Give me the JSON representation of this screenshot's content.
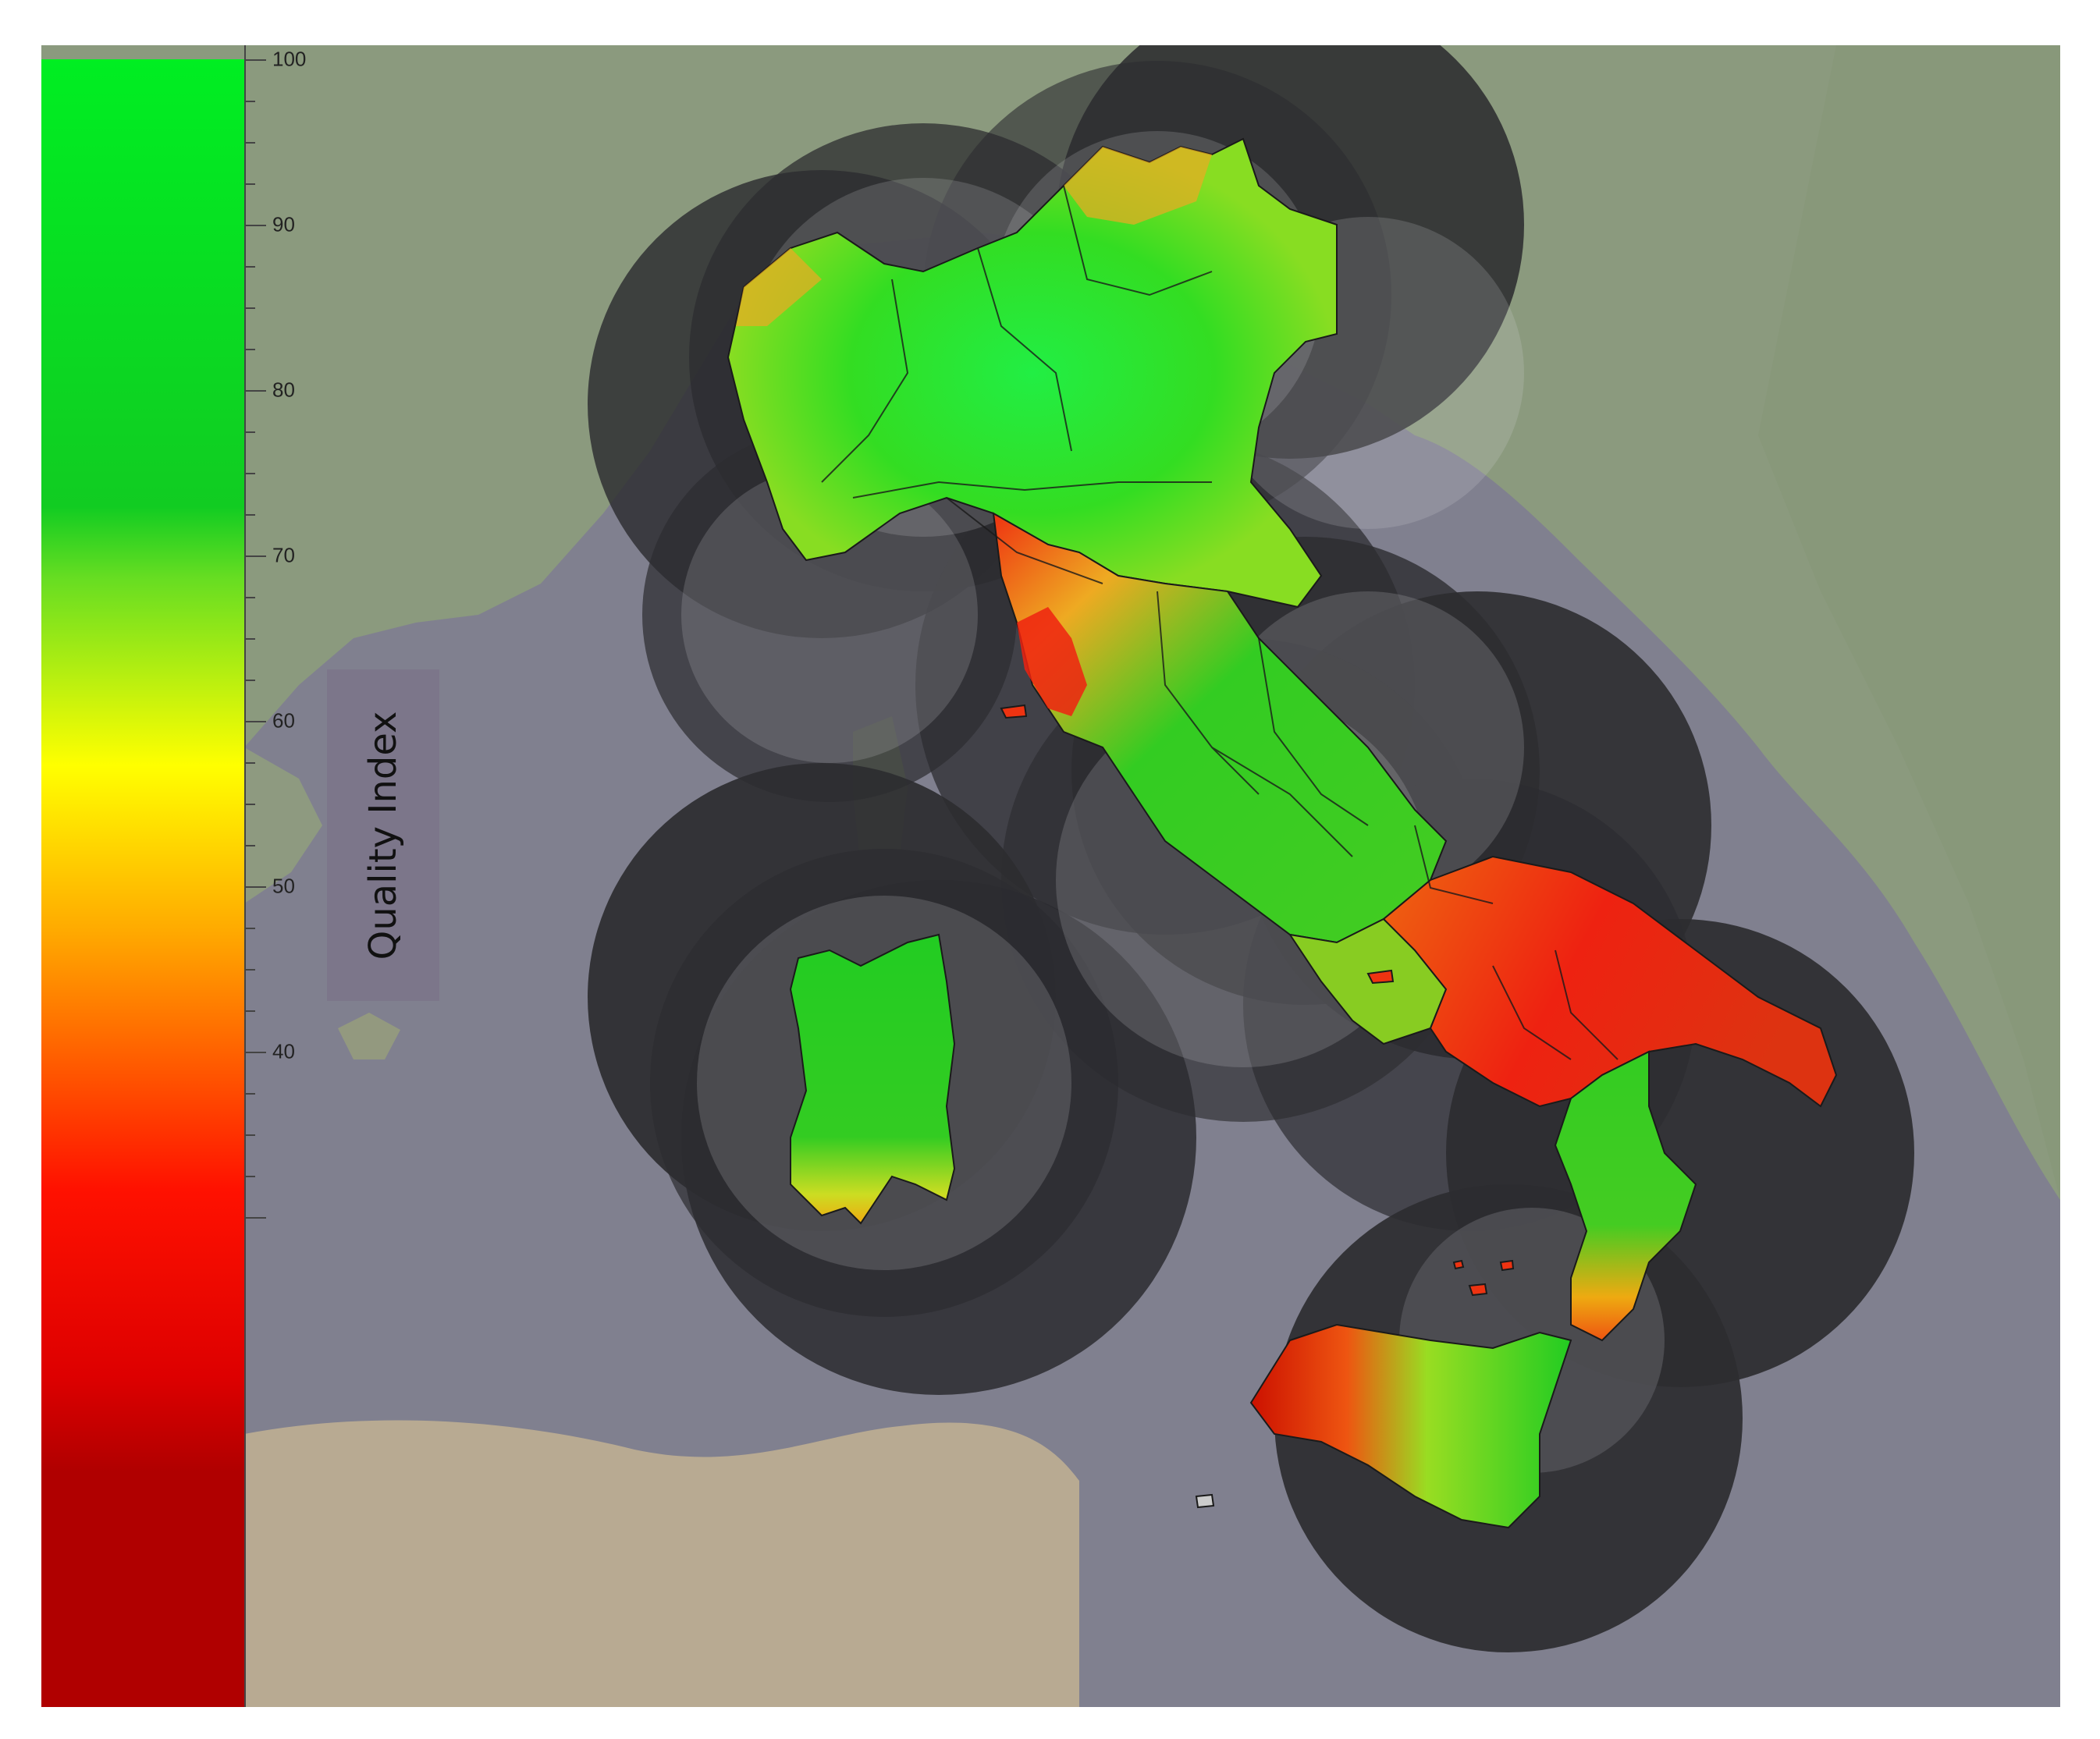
{
  "legend": {
    "title": "Quality Index",
    "ticks": [
      "100",
      "90",
      "80",
      "70",
      "60",
      "50",
      "40"
    ],
    "range": [
      30,
      100
    ],
    "gradient_stops": [
      {
        "value": 100,
        "color": "#00ee22"
      },
      {
        "value": 81,
        "color": "#11cc22"
      },
      {
        "value": 78,
        "color": "#66dd22"
      },
      {
        "value": 70,
        "color": "#ffff00"
      },
      {
        "value": 63,
        "color": "#ffaa00"
      },
      {
        "value": 52,
        "color": "#ff1100"
      },
      {
        "value": 44,
        "color": "#dd0000"
      },
      {
        "value": 40,
        "color": "#b00000"
      },
      {
        "value": 30,
        "color": "#b00000"
      }
    ]
  },
  "colors": {
    "sea": "#80808f",
    "land": "#8a9a7c",
    "radar_coverage": "#2c2c30",
    "coverage_overlap": "#d6d6de",
    "high_quality": "#22dd22",
    "medium_quality": "#eedd22",
    "low_quality": "#ee3311"
  }
}
